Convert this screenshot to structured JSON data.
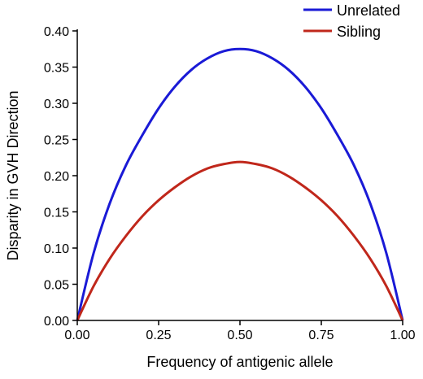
{
  "chart_data": {
    "type": "line",
    "title": "",
    "xlabel": "Frequency of antigenic allele",
    "ylabel": "Disparity in GVH Direction",
    "xlim": [
      0,
      1
    ],
    "ylim": [
      0,
      0.4
    ],
    "x_ticks": [
      "0.00",
      "0.25",
      "0.50",
      "0.75",
      "1.00"
    ],
    "y_ticks": [
      "0.00",
      "0.05",
      "0.10",
      "0.15",
      "0.20",
      "0.25",
      "0.30",
      "0.35",
      "0.40"
    ],
    "grid": false,
    "legend_position": "top-right",
    "series": [
      {
        "name": "Unrelated",
        "color": "#1a1ad6",
        "x": [
          0,
          0.05,
          0.1,
          0.15,
          0.2,
          0.25,
          0.3,
          0.35,
          0.4,
          0.45,
          0.5,
          0.55,
          0.6,
          0.65,
          0.7,
          0.75,
          0.8,
          0.85,
          0.9,
          0.95,
          1
        ],
        "y": [
          0,
          0.0927,
          0.162,
          0.2147,
          0.256,
          0.293,
          0.323,
          0.346,
          0.362,
          0.372,
          0.375,
          0.372,
          0.362,
          0.346,
          0.323,
          0.293,
          0.256,
          0.2147,
          0.162,
          0.0927,
          0
        ]
      },
      {
        "name": "Sibling",
        "color": "#c0271b",
        "x": [
          0,
          0.05,
          0.1,
          0.15,
          0.2,
          0.25,
          0.3,
          0.35,
          0.4,
          0.45,
          0.5,
          0.55,
          0.6,
          0.65,
          0.7,
          0.75,
          0.8,
          0.85,
          0.9,
          0.95,
          1
        ],
        "y": [
          0,
          0.0473,
          0.0855,
          0.117,
          0.144,
          0.166,
          0.184,
          0.199,
          0.21,
          0.216,
          0.219,
          0.216,
          0.21,
          0.199,
          0.184,
          0.166,
          0.144,
          0.117,
          0.0855,
          0.0473,
          0
        ]
      }
    ]
  }
}
